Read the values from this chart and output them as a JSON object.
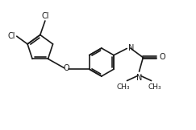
{
  "bg_color": "#ffffff",
  "line_color": "#1a1a1a",
  "line_width": 1.2,
  "font_size": 7.0,
  "font_color": "#1a1a1a",
  "figsize": [
    2.43,
    1.62
  ],
  "dpi": 100,
  "xlim": [
    0,
    10
  ],
  "ylim": [
    0,
    6.67
  ]
}
